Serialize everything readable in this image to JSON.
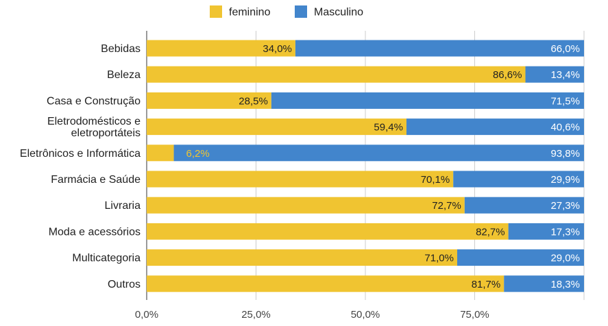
{
  "chart_data": {
    "type": "bar",
    "orientation": "horizontal",
    "stacked": true,
    "normalized": true,
    "categories": [
      [
        "Bebidas"
      ],
      [
        "Beleza"
      ],
      [
        "Casa e Construção"
      ],
      [
        "Eletrodomésticos e",
        "eletroportáteis"
      ],
      [
        "Eletrônicos e Informática"
      ],
      [
        "Farmácia e Saúde"
      ],
      [
        "Livraria"
      ],
      [
        "Moda e acessórios"
      ],
      [
        "Multicategoria"
      ],
      [
        "Outros"
      ]
    ],
    "series": [
      {
        "name": "feminino",
        "color": "#f0c431",
        "values": [
          34.0,
          86.6,
          28.5,
          59.4,
          6.2,
          70.1,
          72.7,
          82.7,
          71.0,
          81.7
        ],
        "labels": [
          "34,0%",
          "86,6%",
          "28,5%",
          "59,4%",
          "6,2%",
          "70,1%",
          "72,7%",
          "82,7%",
          "71,0%",
          "81,7%"
        ]
      },
      {
        "name": "Masculino",
        "color": "#4285cc",
        "values": [
          66.0,
          13.4,
          71.5,
          40.6,
          93.8,
          29.9,
          27.3,
          17.3,
          29.0,
          18.3
        ],
        "labels": [
          "66,0%",
          "13,4%",
          "71,5%",
          "40,6%",
          "93,8%",
          "29,9%",
          "27,3%",
          "17,3%",
          "29,0%",
          "18,3%"
        ]
      }
    ],
    "xlim": [
      0,
      100
    ],
    "xticks": [
      0,
      25,
      50,
      75,
      100
    ],
    "xtick_labels": [
      "0,0%",
      "25,0%",
      "50,0%",
      "75,0%",
      ""
    ],
    "grid": true,
    "legend_position": "top"
  }
}
